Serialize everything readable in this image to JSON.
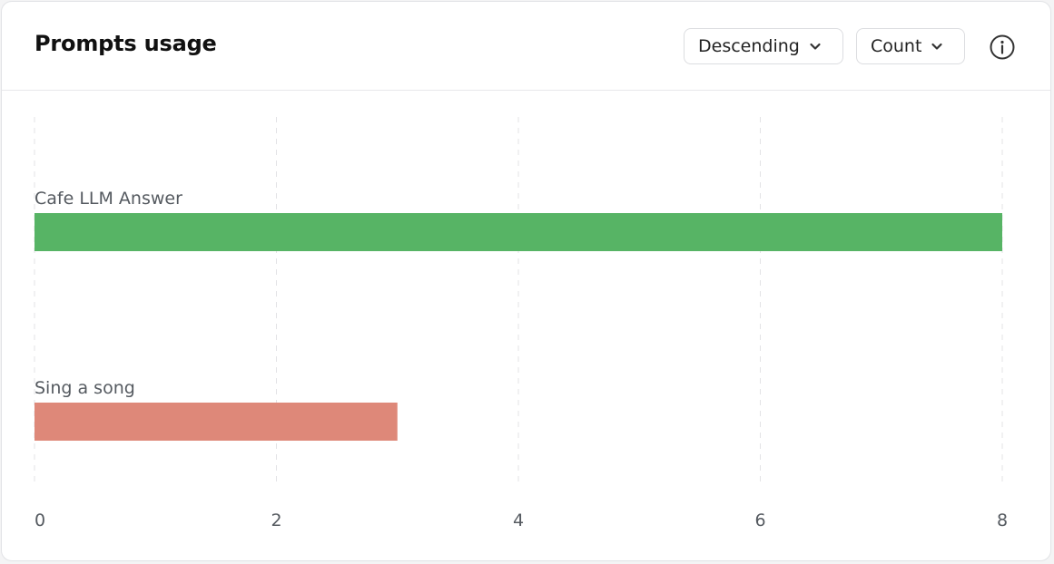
{
  "header": {
    "title": "Prompts usage",
    "sort_dropdown": {
      "selected": "Descending",
      "icon": "chevron-down-icon"
    },
    "metric_dropdown": {
      "selected": "Count",
      "icon": "chevron-down-icon"
    },
    "info_icon": "info-icon"
  },
  "chart_data": {
    "type": "bar",
    "orientation": "horizontal",
    "title": "Prompts usage",
    "categories": [
      "Cafe LLM Answer",
      "Sing a song"
    ],
    "values": [
      8,
      3
    ],
    "colors": [
      "#57b465",
      "#de8879"
    ],
    "xlim": [
      0,
      8
    ],
    "xticks": [
      0,
      2,
      4,
      6,
      8
    ],
    "grid": "vertical dashed"
  }
}
